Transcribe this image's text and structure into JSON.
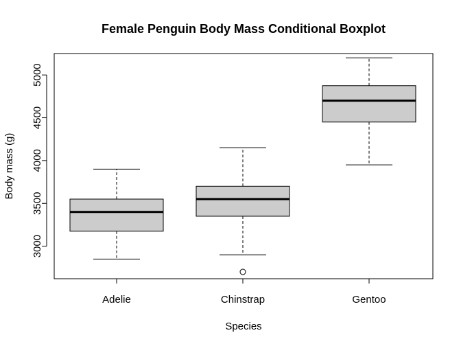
{
  "chart_data": {
    "type": "boxplot",
    "title": "Female Penguin Body Mass Conditional Boxplot",
    "xlabel": "Species",
    "ylabel": "Body mass (g)",
    "ylim": [
      2620,
      5250
    ],
    "y_ticks": [
      "3000",
      "3500",
      "4000",
      "4500",
      "5000"
    ],
    "categories": [
      "Adelie",
      "Chinstrap",
      "Gentoo"
    ],
    "boxes": [
      {
        "category": "Adelie",
        "whisker_low": 2850,
        "q1": 3175,
        "median": 3400,
        "q3": 3550,
        "whisker_high": 3900,
        "outliers": []
      },
      {
        "category": "Chinstrap",
        "whisker_low": 2900,
        "q1": 3350,
        "median": 3550,
        "q3": 3700,
        "whisker_high": 4150,
        "outliers": [
          2700
        ]
      },
      {
        "category": "Gentoo",
        "whisker_low": 3950,
        "q1": 4450,
        "median": 4700,
        "q3": 4875,
        "whisker_high": 5200,
        "outliers": []
      }
    ],
    "box_fill": "#cccccc",
    "line_color": "#000000",
    "grid": false,
    "legend": "none"
  }
}
